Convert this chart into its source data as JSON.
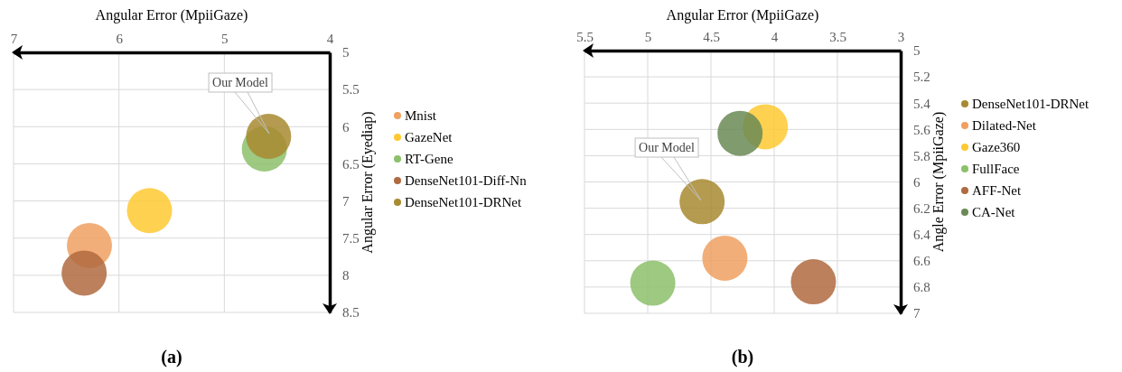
{
  "chart_data": [
    {
      "type": "bubble",
      "title": "(a)",
      "xlabel": "Angular Error (MpiiGaze)",
      "ylabel": "Angular Error (Eyediap)",
      "xlim": [
        7,
        4
      ],
      "xticks": [
        7,
        6,
        5,
        4
      ],
      "ylim": [
        8.5,
        5
      ],
      "yticks": [
        5,
        5.5,
        6,
        6.5,
        7,
        7.5,
        8,
        8.5
      ],
      "grid": true,
      "legend": "right",
      "marker": "circle",
      "series": [
        {
          "name": "Mnist",
          "color": "#f0a060",
          "x": [
            6.28
          ],
          "values": [
            7.6
          ],
          "sizes": [
            1
          ]
        },
        {
          "name": "GazeNet",
          "color": "#ffc933",
          "x": [
            5.71
          ],
          "values": [
            7.13
          ],
          "sizes": [
            1
          ]
        },
        {
          "name": "RT-Gene",
          "color": "#8cc06a",
          "x": [
            4.62
          ],
          "values": [
            6.3
          ],
          "sizes": [
            1
          ]
        },
        {
          "name": "DenseNet101-Diff-Nn",
          "color": "#b06a40",
          "x": [
            6.33
          ],
          "values": [
            7.97
          ],
          "sizes": [
            1
          ]
        },
        {
          "name": "DenseNet101-DRNet",
          "color": "#a88a30",
          "x": [
            4.58
          ],
          "values": [
            6.13
          ],
          "sizes": [
            1
          ]
        }
      ],
      "annotations": [
        "Our Model"
      ]
    },
    {
      "type": "bubble",
      "title": "(b)",
      "xlabel": "Angular Error (MpiiGaze)",
      "ylabel": "Angle Error (MpiiGaze)",
      "xlim": [
        5.5,
        3
      ],
      "xticks": [
        5.5,
        5,
        4.5,
        4,
        3.5,
        3
      ],
      "ylim": [
        7,
        5
      ],
      "yticks": [
        5,
        5.2,
        5.4,
        5.6,
        5.8,
        6,
        6.2,
        6.4,
        6.6,
        6.8,
        7
      ],
      "grid": true,
      "legend": "right",
      "marker": "circle",
      "series": [
        {
          "name": "DenseNet101-DRNet",
          "color": "#a88a30",
          "x": [
            4.57
          ],
          "values": [
            6.15
          ],
          "sizes": [
            1
          ]
        },
        {
          "name": "Dilated-Net",
          "color": "#f0a060",
          "x": [
            4.39
          ],
          "values": [
            6.58
          ],
          "sizes": [
            1
          ]
        },
        {
          "name": "Gaze360",
          "color": "#ffc933",
          "x": [
            4.07
          ],
          "values": [
            5.58
          ],
          "sizes": [
            1
          ]
        },
        {
          "name": "FullFace",
          "color": "#8cc06a",
          "x": [
            4.96
          ],
          "values": [
            6.77
          ],
          "sizes": [
            1
          ]
        },
        {
          "name": "AFF-Net",
          "color": "#b06a40",
          "x": [
            3.69
          ],
          "values": [
            6.76
          ],
          "sizes": [
            1
          ]
        },
        {
          "name": "CA-Net",
          "color": "#6a8a55",
          "x": [
            4.27
          ],
          "values": [
            5.63
          ],
          "sizes": [
            1
          ]
        }
      ],
      "annotations": [
        "Our Model"
      ]
    }
  ]
}
